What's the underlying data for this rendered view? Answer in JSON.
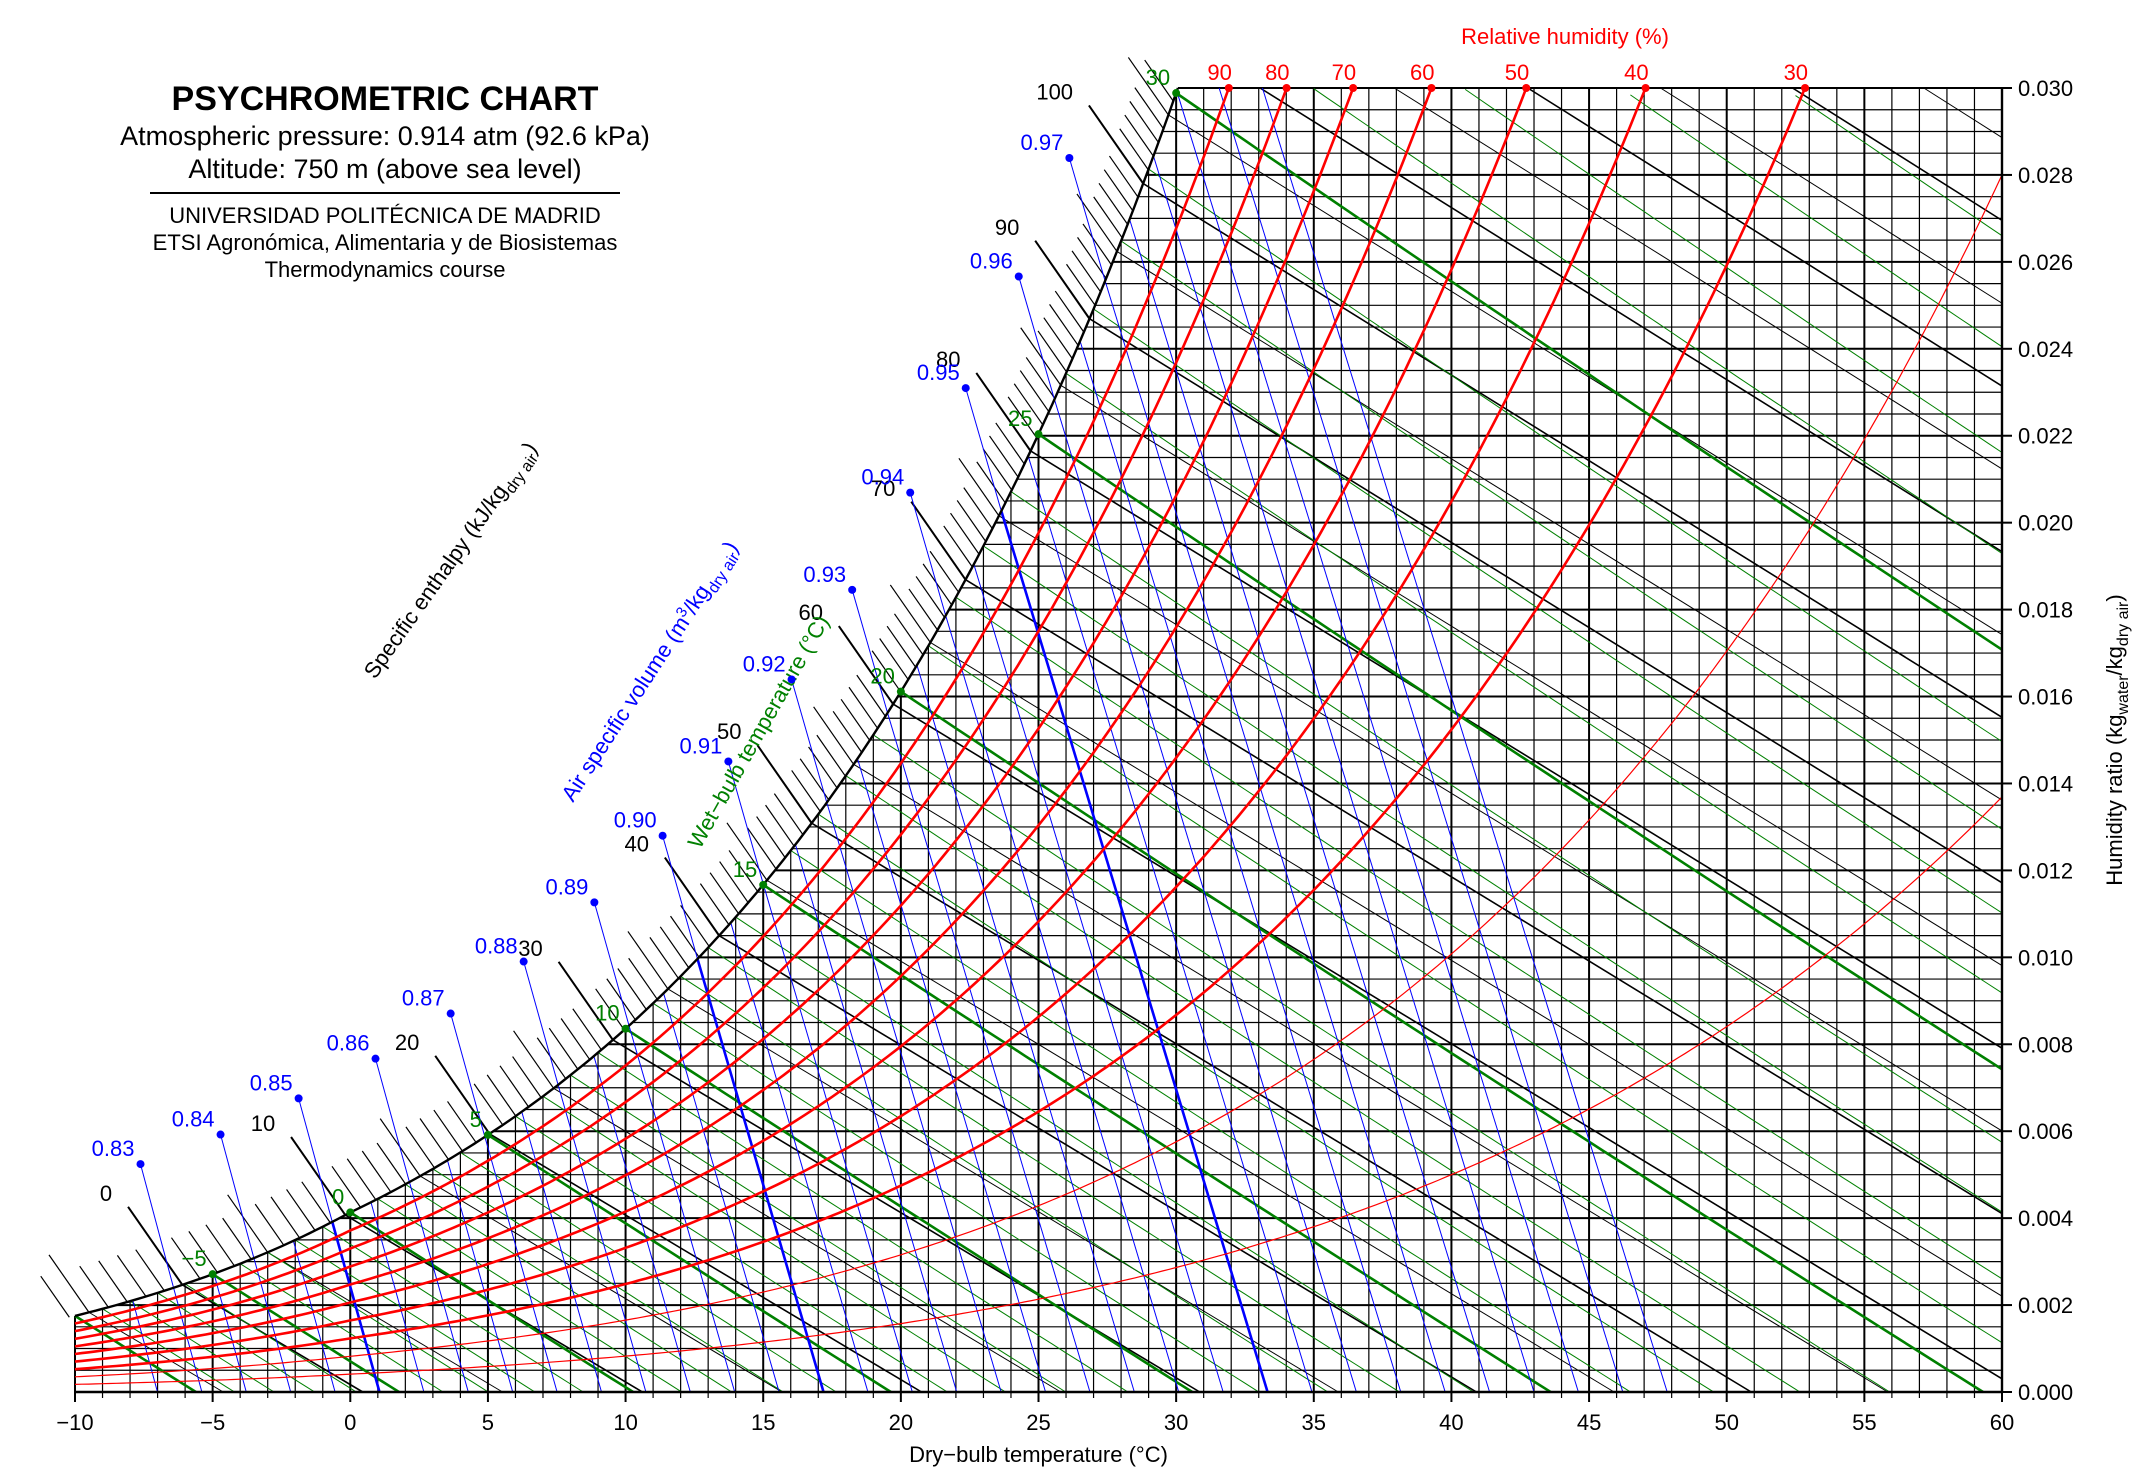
{
  "header": {
    "title": "PSYCHROMETRIC CHART",
    "pressure": "Atmospheric pressure: 0.914 atm (92.6 kPa)",
    "altitude": "Altitude: 750 m (above sea level)",
    "university": "UNIVERSIDAD POLITÉCNICA DE MADRID",
    "school": "ETSI Agronómica, Alimentaria y de Biosistemas",
    "course": "Thermodynamics course"
  },
  "chart_data": {
    "type": "psychrometric",
    "pressure_kpa": 92.6,
    "xlim": [
      -10,
      60
    ],
    "ylim": [
      0,
      0.03
    ],
    "x_ticks": [
      -10,
      -5,
      0,
      5,
      10,
      15,
      20,
      25,
      30,
      35,
      40,
      45,
      50,
      55,
      60
    ],
    "x_tick_labels": [
      "−10",
      "−5",
      "0",
      "5",
      "10",
      "15",
      "20",
      "25",
      "30",
      "35",
      "40",
      "45",
      "50",
      "55",
      "60"
    ],
    "y_ticks": [
      0,
      0.002,
      0.004,
      0.006,
      0.008,
      0.01,
      0.012,
      0.014,
      0.016,
      0.018,
      0.02,
      0.022,
      0.024,
      0.026,
      0.028,
      0.03
    ],
    "y_tick_labels": [
      "0.000",
      "0.002",
      "0.004",
      "0.006",
      "0.008",
      "0.010",
      "0.012",
      "0.014",
      "0.016",
      "0.018",
      "0.020",
      "0.022",
      "0.024",
      "0.026",
      "0.028",
      "0.030"
    ],
    "xlabel": "Dry−bulb temperature (°C)",
    "ylabel": {
      "main": "Humidity ratio (kg",
      "sub1": "water",
      "mid": "/kg",
      "sub2": "dry air",
      "end": ")"
    },
    "rh_title": "Relative humidity (%)",
    "rh_curves": [
      90,
      80,
      70,
      60,
      50,
      40,
      30,
      20,
      10
    ],
    "rh_labels": [
      "90",
      "80",
      "70",
      "60",
      "50",
      "40",
      "30"
    ],
    "enthalpy_title": {
      "main": "Specific enthalpy (kJ/kg",
      "sub": "dry air",
      "end": ")"
    },
    "enthalpy_labels": [
      0,
      10,
      20,
      30,
      40,
      50,
      60,
      70,
      80,
      90,
      100
    ],
    "enthalpy_label_text": [
      "0",
      "10",
      "20",
      "30",
      "40",
      "50",
      "60",
      "70",
      "80",
      "90",
      "100"
    ],
    "volume_title": {
      "main": "Air specific volume (m",
      "sup": "3",
      "mid": "/kg",
      "sub": "dry air",
      "end": ")"
    },
    "volume_labels": [
      0.83,
      0.84,
      0.85,
      0.86,
      0.87,
      0.88,
      0.89,
      0.9,
      0.91,
      0.92,
      0.93,
      0.94,
      0.95,
      0.96,
      0.97
    ],
    "volume_label_text": [
      "0.83",
      "0.84",
      "0.85",
      "0.86",
      "0.87",
      "0.88",
      "0.89",
      "0.90",
      "0.91",
      "0.92",
      "0.93",
      "0.94",
      "0.95",
      "0.96",
      "0.97"
    ],
    "wetbulb_title": "Wet−bulb temperature (°C)",
    "wetbulb_labels": [
      -5,
      0,
      5,
      10,
      15,
      20,
      25,
      30
    ],
    "wetbulb_label_text": [
      "−5",
      "0",
      "5",
      "10",
      "15",
      "20",
      "25",
      "30"
    ],
    "grid": true,
    "colors": {
      "rh": "#ff0000",
      "volume": "#0000ff",
      "wetbulb": "#008000",
      "grid": "#000000"
    }
  }
}
